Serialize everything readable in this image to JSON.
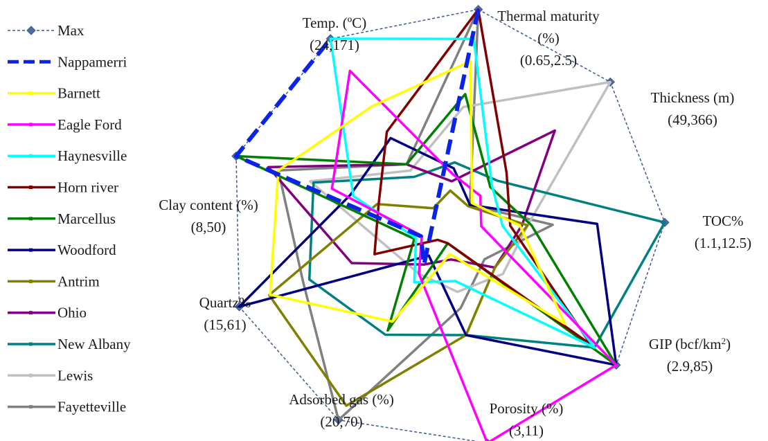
{
  "chart_data": {
    "type": "radar",
    "title": "",
    "axes": [
      {
        "name": "Thermal maturity (%)",
        "range": "(0.65,2.5)",
        "min": 0.65,
        "max": 2.5
      },
      {
        "name": "Thickness (m)",
        "range": "(49,366)",
        "min": 49,
        "max": 366
      },
      {
        "name": "TOC%",
        "range": "(1.1,12.5)",
        "min": 1.1,
        "max": 12.5
      },
      {
        "name": "GIP (bcf/km²)",
        "range": "(2.9,85)",
        "min": 2.9,
        "max": 85
      },
      {
        "name": "Porosity (%)",
        "range": "(3,11)",
        "min": 3,
        "max": 11
      },
      {
        "name": "Adsorbed gas (%)",
        "range": "(20,70)",
        "min": 20,
        "max": 70
      },
      {
        "name": "Quartz%",
        "range": "(15,61)",
        "min": 15,
        "max": 61
      },
      {
        "name": "Clay content (%)",
        "range": "(8,50)",
        "min": 8,
        "max": 50
      },
      {
        "name": "Temp. (ºC)",
        "range": "(24,171)",
        "min": 24,
        "max": 171
      }
    ],
    "series": [
      {
        "name": "Max",
        "color": "#3c5a8c",
        "style": "dotted",
        "marker": "diamond",
        "values": [
          2.5,
          366,
          12.5,
          85,
          11,
          70,
          61,
          50,
          171
        ]
      },
      {
        "name": "Nappamerri",
        "color": "#0a23e6",
        "style": "dashed-thick",
        "values": [
          2.5,
          null,
          null,
          null,
          null,
          29.7,
          20.3,
          50,
          171
        ]
      },
      {
        "name": "Barnett",
        "color": "#ffff00",
        "style": "solid",
        "values": [
          2.06,
          101.4,
          5.0,
          60.4,
          4.0,
          44.5,
          54.1,
          41.5,
          118.1
        ]
      },
      {
        "name": "Eagle Ford",
        "color": "#ff00ff",
        "style": "solid",
        "values": [
          1.1,
          117.4,
          3.0,
          85,
          11,
          32.1,
          20.1,
          30.7,
          146
        ]
      },
      {
        "name": "Haynesville",
        "color": "#00ffff",
        "style": "solid",
        "values": [
          2.25,
          139.6,
          4.1,
          74.6,
          5.0,
          34.3,
          21.4,
          26.4,
          171
        ]
      },
      {
        "name": "Horn river",
        "color": "#800000",
        "style": "solid",
        "values": [
          2.5,
          167.6,
          4.5,
          73.0,
          3.6,
          23.3,
          30.7,
          21.3,
          98.4
        ]
      },
      {
        "name": "Marcellus",
        "color": "#008000",
        "style": "solid",
        "values": [
          1.78,
          136.5,
          5.6,
          85,
          3.6,
          46.8,
          21.8,
          50,
          73
        ]
      },
      {
        "name": "Woodford",
        "color": "#000080",
        "style": "solid",
        "values": [
          1.15,
          97.5,
          9.0,
          85,
          7.0,
          27.4,
          61,
          27.0,
          93.5
        ]
      },
      {
        "name": "Antrim",
        "color": "#808000",
        "style": "solid",
        "values": [
          0.96,
          94.4,
          5.4,
          27.0,
          7.0,
          66.3,
          54.3,
          21.6,
          38.7
        ]
      },
      {
        "name": "Ohio",
        "color": "#800080",
        "style": "solid",
        "values": [
          1.04,
          259.9,
          5.1,
          27.0,
          4.2,
          29.7,
          35.8,
          43.5,
          73
        ]
      },
      {
        "name": "New Albany",
        "color": "#008080",
        "style": "solid",
        "values": [
          1.2,
          150.3,
          12.5,
          74.6,
          7.0,
          47.9,
          45.3,
          34.4,
          63.2
        ]
      },
      {
        "name": "Lewis",
        "color": "#c0c0c0",
        "style": "solid",
        "values": [
          1.67,
          366,
          5.4,
          30.8,
          5.4,
          32.1,
          27.4,
          35.1,
          68.1
        ]
      },
      {
        "name": "Fayetteville",
        "color": "#808080",
        "style": "solid",
        "values": [
          2.5,
          97.5,
          6.7,
          22.0,
          6.0,
          70,
          46.7,
          41.5,
          73
        ]
      }
    ]
  },
  "labels": {
    "thermal_line1": "Thermal maturity",
    "thermal_line2": "(%)",
    "thermal_range": "(0.65,2.5)",
    "thickness": "Thickness (m)",
    "thickness_range": "(49,366)",
    "toc": "TOC%",
    "toc_range": "(1.1,12.5)",
    "gip_main": "GIP (bcf/km",
    "gip_sup": "2",
    "gip_close": ")",
    "gip_range": "(2.9,85)",
    "porosity": "Porosity (%)",
    "porosity_range": "(3,11)",
    "adsorbed": "Adsorbed gas (%)",
    "adsorbed_range": "(20,70)",
    "quartz": "Quartz%",
    "quartz_range": "(15,61)",
    "clay": "Clay content (%)",
    "clay_range": "(8,50)",
    "temp": "Temp. (ºC)",
    "temp_range": "(24,171)"
  }
}
